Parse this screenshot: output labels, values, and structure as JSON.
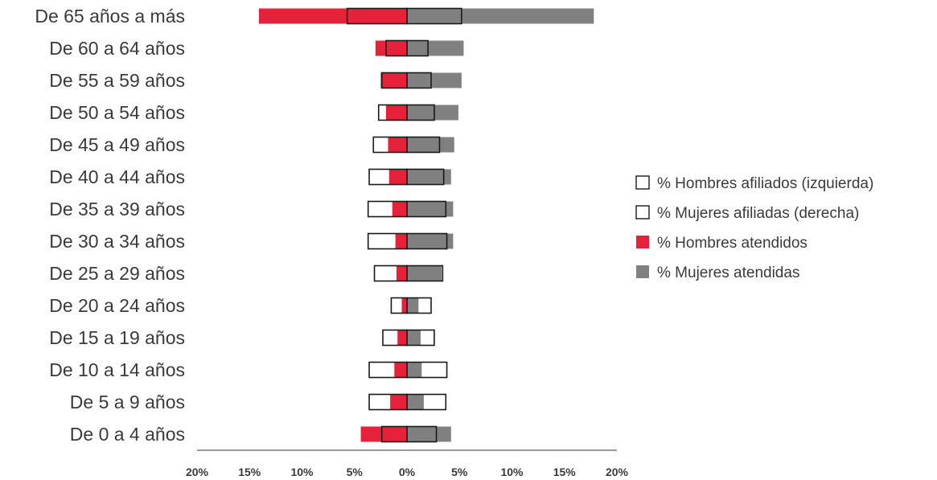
{
  "chart_data": {
    "type": "bar",
    "orientation": "horizontal",
    "layout": "population-pyramid",
    "categories": [
      "De 65 años a más",
      "De 60 a 64 años",
      "De 55 a 59 años",
      "De 50 a 54 años",
      "De 45 a 49 años",
      "De 40 a 44 años",
      "De 35 a 39 años",
      "De 30 a 34 años",
      "De 25 a 29 años",
      "De 20 a 24 años",
      "De 15 a 19 años",
      "De 10 a 14 años",
      "De 5 a 9 años",
      "De 0 a 4 años"
    ],
    "series": [
      {
        "name": "% Hombres afiliados (izquierda)",
        "side": "left",
        "style": "outline",
        "color": "#1a1a1a",
        "values": [
          5.7,
          2.0,
          2.4,
          2.7,
          3.2,
          3.6,
          3.7,
          3.7,
          3.1,
          1.5,
          2.3,
          3.6,
          3.6,
          2.4
        ]
      },
      {
        "name": "% Mujeres afiliadas (derecha)",
        "side": "right",
        "style": "outline",
        "color": "#1a1a1a",
        "values": [
          5.2,
          2.0,
          2.3,
          2.6,
          3.1,
          3.5,
          3.7,
          3.8,
          3.4,
          2.3,
          2.6,
          3.8,
          3.7,
          2.8
        ]
      },
      {
        "name": "% Hombres atendidos",
        "side": "left",
        "style": "fill",
        "color": "#e5223a",
        "values": [
          14.1,
          3.0,
          2.5,
          2.0,
          1.8,
          1.7,
          1.4,
          1.1,
          1.0,
          0.5,
          0.9,
          1.2,
          1.6,
          4.4
        ]
      },
      {
        "name": "% Mujeres atendidas",
        "side": "right",
        "style": "fill",
        "color": "#808080",
        "values": [
          17.8,
          5.4,
          5.2,
          4.9,
          4.5,
          4.2,
          4.4,
          4.4,
          3.3,
          1.1,
          1.3,
          1.4,
          1.6,
          4.2
        ]
      }
    ],
    "xlim": [
      -20,
      20
    ],
    "xticks": [
      -20,
      -15,
      -10,
      -5,
      0,
      5,
      10,
      15,
      20
    ],
    "xtick_labels": [
      "20%",
      "15%",
      "10%",
      "5%",
      "0%",
      "5%",
      "10%",
      "15%",
      "20%"
    ],
    "title": "",
    "xlabel": "",
    "ylabel": "",
    "grid": false,
    "legend_position": "right"
  }
}
